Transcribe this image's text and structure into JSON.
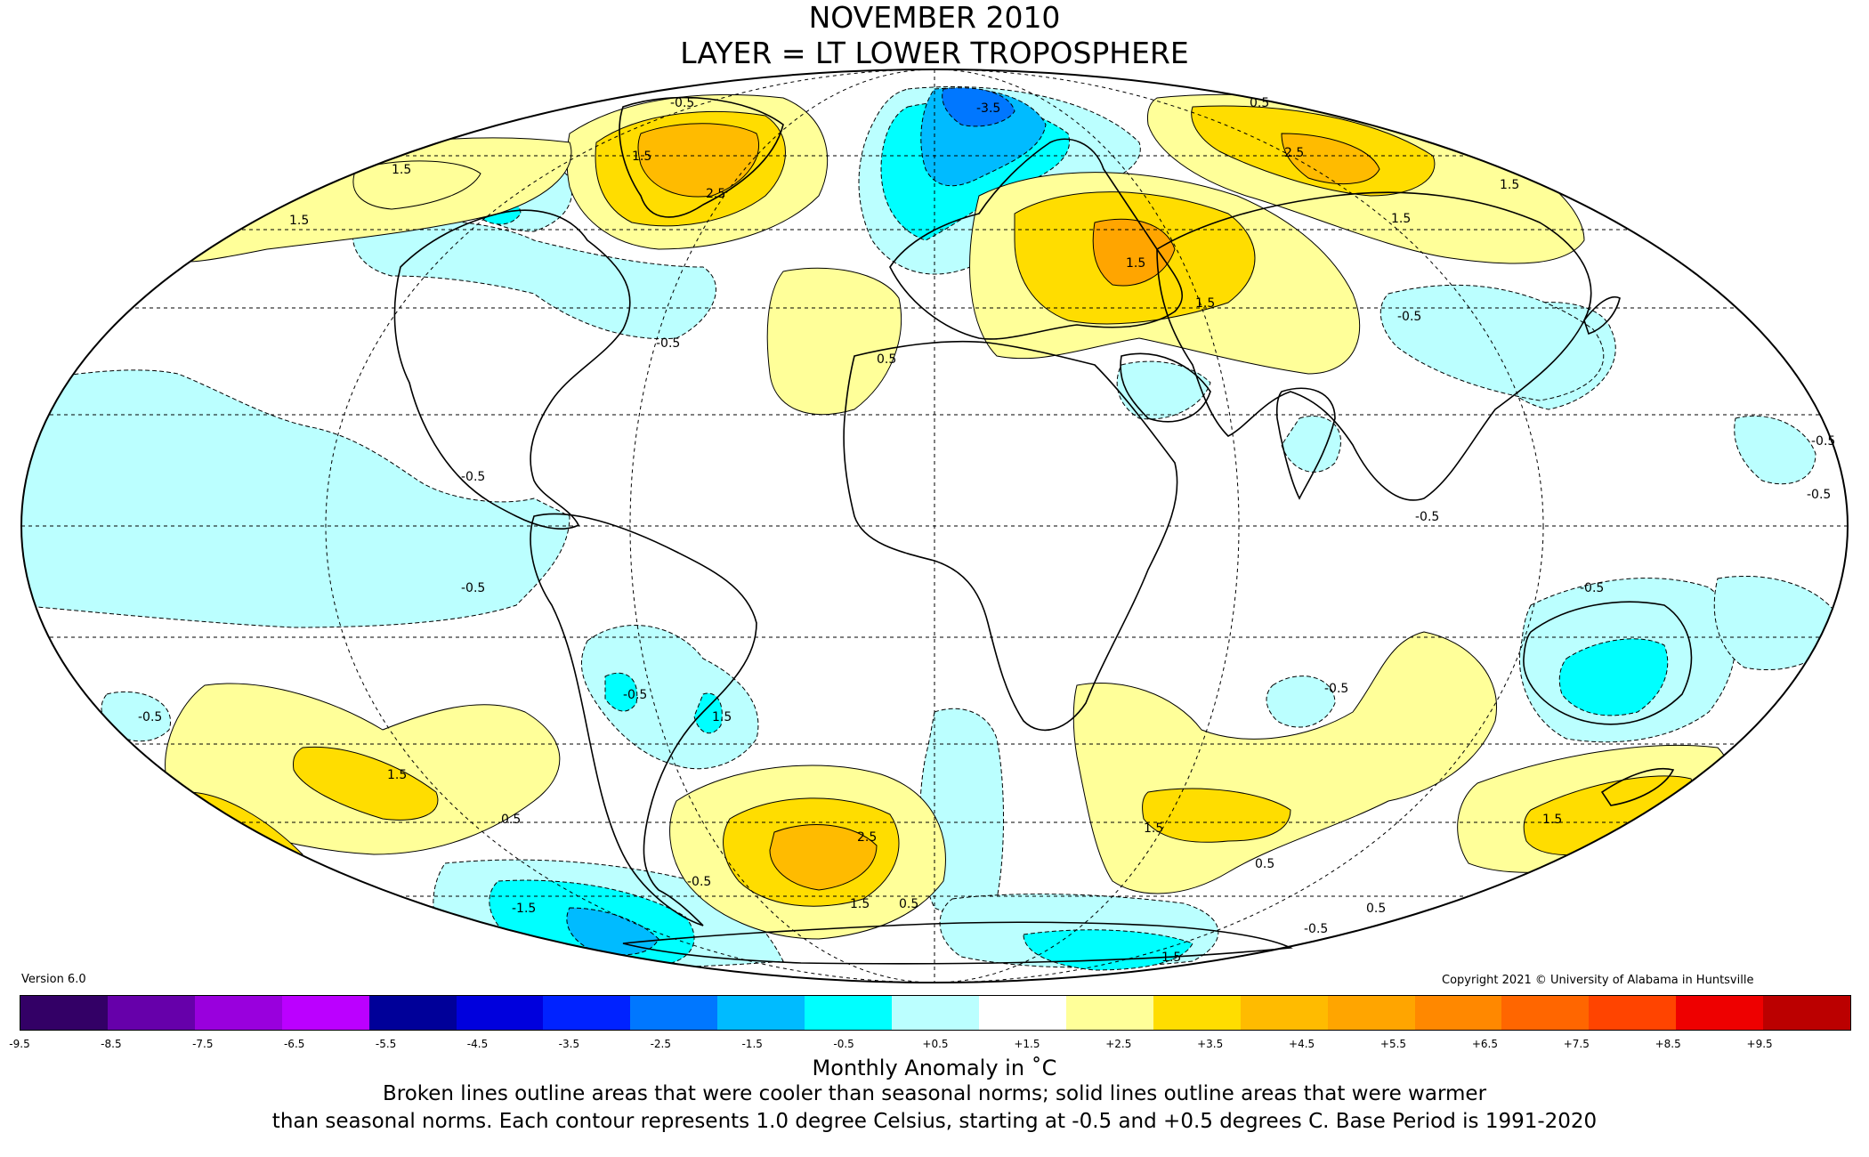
{
  "title": {
    "line1": "NOVEMBER 2010",
    "line2": "LAYER = LT LOWER TROPOSPHERE"
  },
  "footer": {
    "version": "Version 6.0",
    "copyright": "Copyright 2021 © University of Alabama in Huntsville",
    "colorbar_label": "Monthly Anomaly in ˚C",
    "caption_line1": "Broken lines outline areas that were cooler than seasonal norms; solid lines outline areas that were warmer",
    "caption_line2": "than seasonal norms. Each contour represents 1.0 degree Celsius, starting at -0.5 and +0.5 degrees C. Base Period is 1991-2020"
  },
  "colorbar": {
    "colors": [
      "#330066",
      "#6600aa",
      "#9900dd",
      "#bb00ff",
      "#000099",
      "#0000dd",
      "#0022ff",
      "#0077ff",
      "#00bbff",
      "#00ffff",
      "#bbffff",
      "#ffffff",
      "#ffff99",
      "#ffdd00",
      "#ffbb00",
      "#ffa500",
      "#ff8800",
      "#ff6600",
      "#ff4400",
      "#ee0000",
      "#bb0000"
    ],
    "ticks": [
      "-9.5",
      "-8.5",
      "-7.5",
      "-6.5",
      "-5.5",
      "-4.5",
      "-3.5",
      "-2.5",
      "-1.5",
      "-0.5",
      "+0.5",
      "+1.5",
      "+2.5",
      "+3.5",
      "+4.5",
      "+5.5",
      "+6.5",
      "+7.5",
      "+8.5",
      "+9.5"
    ]
  },
  "map": {
    "projection": "mollweide",
    "legend_colors": {
      "cool_1": "#bbffff",
      "cool_2": "#00ffff",
      "cool_3": "#00bbff",
      "cool_4": "#0077ff",
      "cool_5": "#0022ff",
      "warm_1": "#ffff99",
      "warm_2": "#ffdd00",
      "warm_3": "#ffbb00",
      "warm_4": "#ffa500"
    },
    "contour_labels": [
      {
        "id": "c1",
        "text": "-0.5"
      },
      {
        "id": "c2",
        "text": "-3.5"
      },
      {
        "id": "c3",
        "text": "0.5"
      },
      {
        "id": "c4",
        "text": "2.5"
      },
      {
        "id": "c5",
        "text": "1.5"
      },
      {
        "id": "c6",
        "text": "1.5"
      },
      {
        "id": "c7",
        "text": "1.5"
      },
      {
        "id": "c8",
        "text": "1.5"
      },
      {
        "id": "c9",
        "text": "2.5"
      },
      {
        "id": "c10",
        "text": "1.5"
      },
      {
        "id": "c11",
        "text": "-0.5"
      },
      {
        "id": "c12",
        "text": "-0.5"
      },
      {
        "id": "c13",
        "text": "-0.5"
      },
      {
        "id": "c14",
        "text": "-0.5"
      },
      {
        "id": "c15",
        "text": "-0.5"
      },
      {
        "id": "c16",
        "text": "-0.5"
      },
      {
        "id": "c17",
        "text": "1.5"
      },
      {
        "id": "c18",
        "text": "1.5"
      },
      {
        "id": "c19",
        "text": "0.5"
      },
      {
        "id": "c20",
        "text": "-0.5"
      },
      {
        "id": "c21",
        "text": "1.5"
      },
      {
        "id": "c22",
        "text": "0.5"
      },
      {
        "id": "c23",
        "text": "2.5"
      },
      {
        "id": "c24",
        "text": "1.5"
      },
      {
        "id": "c25",
        "text": "0.5"
      },
      {
        "id": "c26",
        "text": "-0.5"
      },
      {
        "id": "c27",
        "text": "-1.5"
      },
      {
        "id": "c28",
        "text": "1.5"
      },
      {
        "id": "c29",
        "text": "0.5"
      },
      {
        "id": "c30",
        "text": "-0.5"
      },
      {
        "id": "c31",
        "text": "1.5"
      },
      {
        "id": "c32",
        "text": "0.5"
      },
      {
        "id": "c33",
        "text": "-1.5"
      },
      {
        "id": "c34",
        "text": "-0.5"
      },
      {
        "id": "c35",
        "text": "-0.5"
      },
      {
        "id": "c36",
        "text": "-0.5"
      },
      {
        "id": "c37",
        "text": "1.5"
      },
      {
        "id": "c38",
        "text": "-0.5"
      }
    ]
  }
}
